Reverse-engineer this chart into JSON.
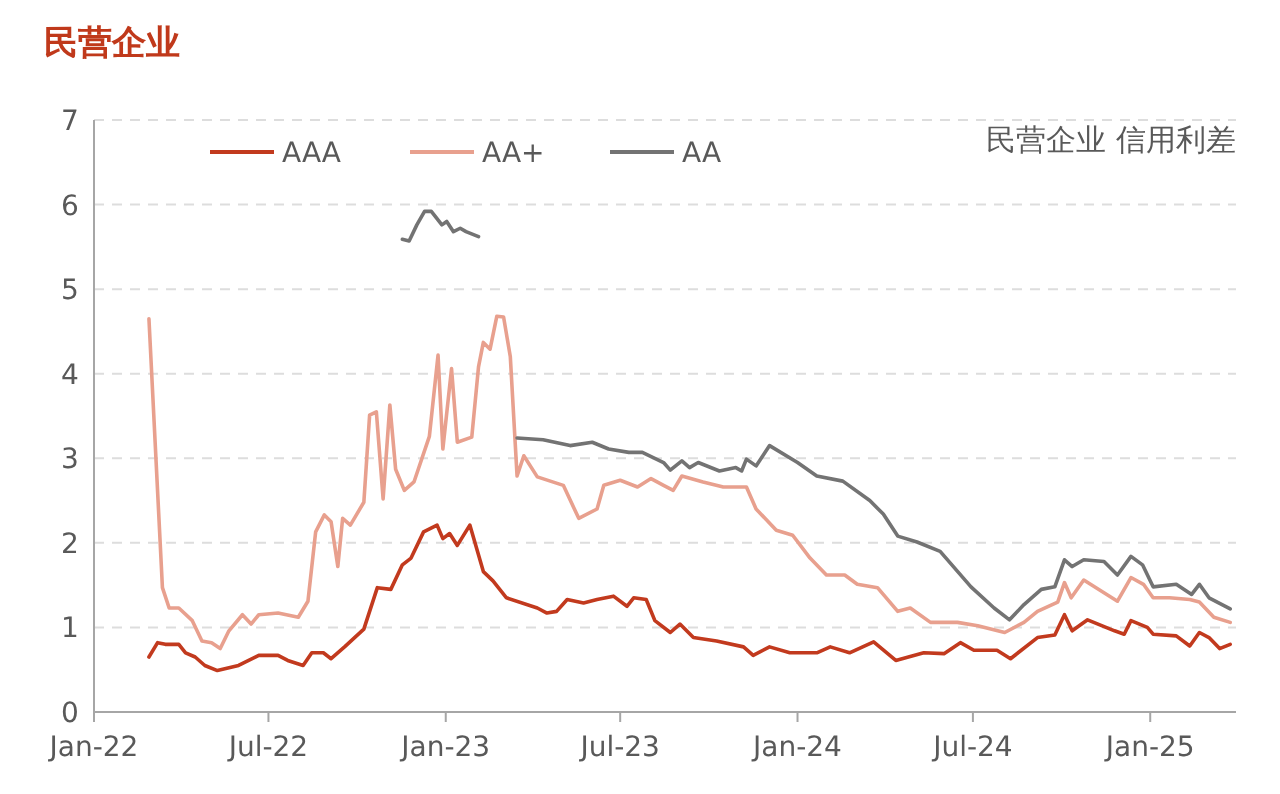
{
  "chart_data": {
    "type": "line",
    "title": "民营企业",
    "annotations": [
      "民营企业 信用利差"
    ],
    "grid": "y",
    "legend": "top left",
    "xlim": [
      "2022-01-01",
      "2025-03-31"
    ],
    "xticks": [
      {
        "value": "2022-01-01",
        "label": "Jan-22"
      },
      {
        "value": "2022-07-01",
        "label": "Jul-22"
      },
      {
        "value": "2023-01-01",
        "label": "Jan-23"
      },
      {
        "value": "2023-07-01",
        "label": "Jul-23"
      },
      {
        "value": "2024-01-01",
        "label": "Jan-24"
      },
      {
        "value": "2024-07-01",
        "label": "Jul-24"
      },
      {
        "value": "2025-01-01",
        "label": "Jan-25"
      }
    ],
    "ylim": [
      0,
      7
    ],
    "yticks": [
      0,
      1,
      2,
      3,
      4,
      5,
      6,
      7
    ],
    "series": [
      {
        "name": "AAA",
        "color": "#c23a1e",
        "x": [
          "2022-02-27",
          "2022-03-08",
          "2022-03-16",
          "2022-03-30",
          "2022-04-06",
          "2022-04-16",
          "2022-04-26",
          "2022-05-09",
          "2022-05-31",
          "2022-06-21",
          "2022-07-11",
          "2022-07-21",
          "2022-08-06",
          "2022-08-15",
          "2022-08-27",
          "2022-09-04",
          "2022-09-18",
          "2022-10-08",
          "2022-10-22",
          "2022-11-05",
          "2022-11-17",
          "2022-11-26",
          "2022-12-09",
          "2022-12-23",
          "2022-12-29",
          "2023-01-05",
          "2023-01-13",
          "2023-01-26",
          "2023-02-09",
          "2023-02-19",
          "2023-03-05",
          "2023-04-06",
          "2023-04-16",
          "2023-04-26",
          "2023-05-07",
          "2023-05-24",
          "2023-06-07",
          "2023-06-24",
          "2023-07-08",
          "2023-07-15",
          "2023-07-28",
          "2023-08-06",
          "2023-08-22",
          "2023-09-01",
          "2023-09-15",
          "2023-10-09",
          "2023-11-06",
          "2023-11-16",
          "2023-12-03",
          "2023-12-24",
          "2024-01-21",
          "2024-02-04",
          "2024-02-24",
          "2024-03-20",
          "2024-04-12",
          "2024-05-11",
          "2024-06-01",
          "2024-06-18",
          "2024-07-02",
          "2024-07-26",
          "2024-08-09",
          "2024-09-06",
          "2024-09-24",
          "2024-10-04",
          "2024-10-12",
          "2024-10-28",
          "2024-11-25",
          "2024-12-05",
          "2024-12-12",
          "2024-12-29",
          "2025-01-04",
          "2025-01-28",
          "2025-02-11",
          "2025-02-21",
          "2025-03-03",
          "2025-03-14",
          "2025-03-25"
        ],
        "values": [
          0.65,
          0.82,
          0.8,
          0.8,
          0.7,
          0.65,
          0.55,
          0.49,
          0.55,
          0.67,
          0.67,
          0.61,
          0.55,
          0.7,
          0.7,
          0.63,
          0.77,
          0.98,
          1.47,
          1.45,
          1.74,
          1.82,
          2.13,
          2.21,
          2.05,
          2.11,
          1.97,
          2.21,
          1.66,
          1.55,
          1.35,
          1.23,
          1.17,
          1.19,
          1.33,
          1.29,
          1.33,
          1.37,
          1.25,
          1.35,
          1.33,
          1.08,
          0.94,
          1.04,
          0.88,
          0.84,
          0.77,
          0.67,
          0.77,
          0.7,
          0.7,
          0.77,
          0.7,
          0.83,
          0.61,
          0.7,
          0.69,
          0.82,
          0.73,
          0.73,
          0.63,
          0.88,
          0.91,
          1.15,
          0.96,
          1.09,
          0.96,
          0.92,
          1.08,
          1.0,
          0.92,
          0.9,
          0.78,
          0.94,
          0.88,
          0.75,
          0.8
        ]
      },
      {
        "name": "AA+",
        "color": "#e8a08e",
        "x": [
          "2022-02-27",
          "2022-03-13",
          "2022-03-20",
          "2022-03-30",
          "2022-04-13",
          "2022-04-23",
          "2022-05-03",
          "2022-05-12",
          "2022-05-21",
          "2022-06-04",
          "2022-06-13",
          "2022-06-21",
          "2022-07-11",
          "2022-08-01",
          "2022-08-11",
          "2022-08-19",
          "2022-08-28",
          "2022-09-04",
          "2022-09-11",
          "2022-09-16",
          "2022-09-24",
          "2022-10-08",
          "2022-10-14",
          "2022-10-21",
          "2022-10-28",
          "2022-11-04",
          "2022-11-10",
          "2022-11-19",
          "2022-11-29",
          "2022-12-15",
          "2022-12-24",
          "2022-12-29",
          "2023-01-07",
          "2023-01-13",
          "2023-01-28",
          "2023-02-04",
          "2023-02-09",
          "2023-02-16",
          "2023-02-23",
          "2023-03-02",
          "2023-03-09",
          "2023-03-16",
          "2023-03-23",
          "2023-04-06",
          "2023-05-03",
          "2023-05-19",
          "2023-06-07",
          "2023-06-14",
          "2023-07-01",
          "2023-07-19",
          "2023-08-02",
          "2023-08-15",
          "2023-08-25",
          "2023-09-03",
          "2023-09-25",
          "2023-10-16",
          "2023-11-09",
          "2023-11-19",
          "2023-12-10",
          "2023-12-27",
          "2024-01-14",
          "2024-01-31",
          "2024-02-19",
          "2024-03-03",
          "2024-03-24",
          "2024-04-14",
          "2024-04-27",
          "2024-05-18",
          "2024-06-15",
          "2024-07-06",
          "2024-08-03",
          "2024-08-23",
          "2024-09-06",
          "2024-09-27",
          "2024-10-04",
          "2024-10-11",
          "2024-10-24",
          "2024-11-14",
          "2024-11-28",
          "2024-12-12",
          "2024-12-25",
          "2025-01-04",
          "2025-01-21",
          "2025-02-11",
          "2025-02-21",
          "2025-03-08",
          "2025-03-25"
        ],
        "values": [
          4.65,
          1.47,
          1.23,
          1.23,
          1.08,
          0.84,
          0.82,
          0.75,
          0.96,
          1.15,
          1.04,
          1.15,
          1.17,
          1.12,
          1.31,
          2.13,
          2.33,
          2.25,
          1.72,
          2.29,
          2.21,
          2.48,
          3.51,
          3.55,
          2.52,
          3.63,
          2.87,
          2.62,
          2.72,
          3.26,
          4.22,
          3.11,
          4.06,
          3.19,
          3.25,
          4.08,
          4.37,
          4.29,
          4.68,
          4.67,
          4.2,
          2.79,
          3.03,
          2.78,
          2.68,
          2.29,
          2.4,
          2.68,
          2.74,
          2.66,
          2.76,
          2.68,
          2.62,
          2.79,
          2.72,
          2.66,
          2.66,
          2.4,
          2.15,
          2.09,
          1.82,
          1.62,
          1.62,
          1.51,
          1.47,
          1.19,
          1.23,
          1.06,
          1.06,
          1.02,
          0.94,
          1.06,
          1.19,
          1.3,
          1.53,
          1.35,
          1.56,
          1.41,
          1.31,
          1.59,
          1.51,
          1.35,
          1.35,
          1.33,
          1.3,
          1.12,
          1.06
        ]
      },
      {
        "name": "AA",
        "color": "#737373",
        "x": [
          "2022-11-17",
          "2022-11-24",
          "2022-12-02",
          "2022-12-10",
          "2022-12-17",
          "2022-12-28",
          "2023-01-02",
          "2023-01-09",
          "2023-01-16",
          "2023-01-22",
          "2023-02-04",
          "2023-02-25",
          "2023-03-16",
          "2023-04-12",
          "2023-05-10",
          "2023-06-02",
          "2023-06-19",
          "2023-07-10",
          "2023-07-24",
          "2023-08-15",
          "2023-08-22",
          "2023-09-03",
          "2023-09-11",
          "2023-09-20",
          "2023-10-12",
          "2023-10-29",
          "2023-11-04",
          "2023-11-09",
          "2023-11-19",
          "2023-12-03",
          "2024-01-01",
          "2024-01-21",
          "2024-02-17",
          "2024-03-16",
          "2024-03-30",
          "2024-04-14",
          "2024-05-04",
          "2024-05-28",
          "2024-06-29",
          "2024-07-23",
          "2024-08-08",
          "2024-08-23",
          "2024-09-10",
          "2024-09-24",
          "2024-10-04",
          "2024-10-12",
          "2024-10-24",
          "2024-11-14",
          "2024-11-28",
          "2024-12-12",
          "2024-12-24",
          "2025-01-04",
          "2025-01-28",
          "2025-02-13",
          "2025-02-21",
          "2025-03-03",
          "2025-03-25"
        ],
        "values": [
          5.59,
          5.57,
          5.76,
          5.92,
          5.92,
          5.76,
          5.8,
          5.68,
          5.72,
          5.68,
          5.62,
          null,
          3.24,
          3.22,
          3.15,
          3.19,
          3.11,
          3.07,
          3.07,
          2.95,
          2.86,
          2.97,
          2.89,
          2.95,
          2.85,
          2.89,
          2.85,
          2.99,
          2.91,
          3.15,
          2.95,
          2.79,
          2.73,
          2.5,
          2.34,
          2.08,
          2.01,
          1.9,
          1.48,
          1.23,
          1.09,
          1.27,
          1.45,
          1.48,
          1.8,
          1.72,
          1.8,
          1.78,
          1.62,
          1.84,
          1.74,
          1.48,
          1.51,
          1.39,
          1.51,
          1.35,
          1.22
        ]
      }
    ]
  }
}
